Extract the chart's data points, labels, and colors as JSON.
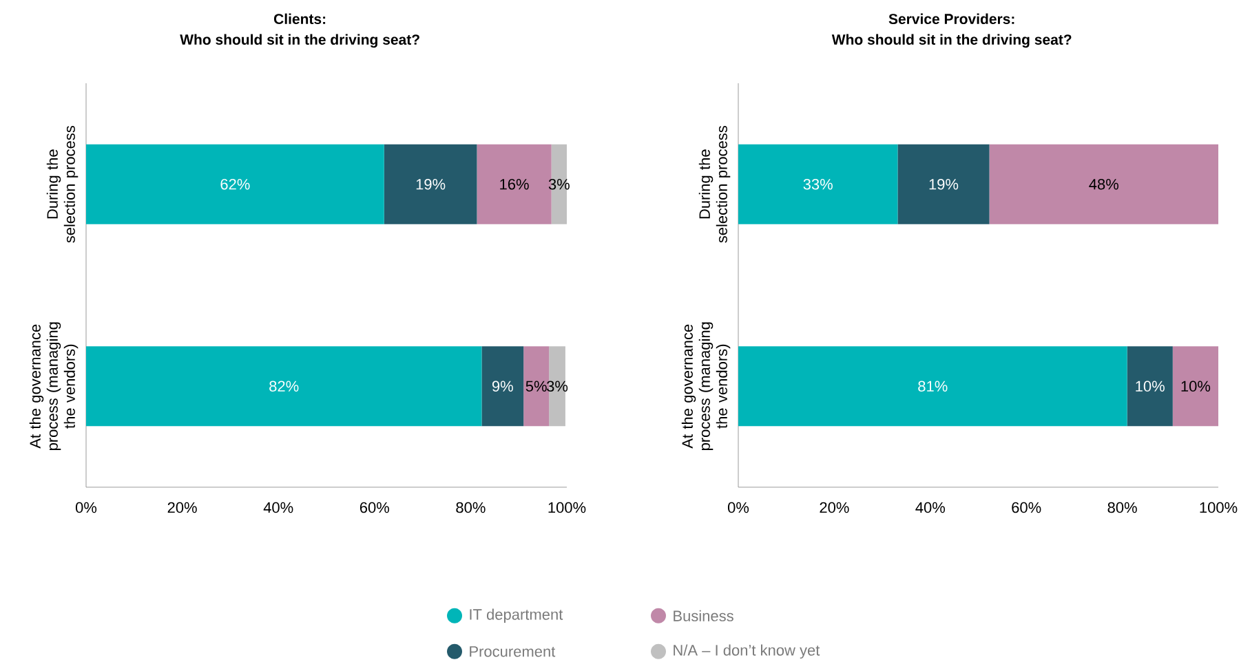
{
  "chart_data": [
    {
      "type": "bar",
      "orientation": "horizontal",
      "stacked": true,
      "title": "Clients:",
      "subtitle": "Who should sit in the driving seat?",
      "categories": [
        "During the selection process",
        "At the governance process (managing the vendors)"
      ],
      "xlim": [
        0,
        100
      ],
      "xticks": [
        {
          "value": 0,
          "label": "0%"
        },
        {
          "value": 20,
          "label": "20%"
        },
        {
          "value": 40,
          "label": "40%"
        },
        {
          "value": 60,
          "label": "60%"
        },
        {
          "value": 80,
          "label": "80%"
        },
        {
          "value": 100,
          "label": "100%"
        }
      ],
      "legend": "bottom",
      "marker": "circle",
      "series": [
        {
          "name": "IT department",
          "color": "#00b5b8",
          "values": [
            62,
            82.3
          ],
          "value_labels": [
            "62%",
            "82%"
          ]
        },
        {
          "name": "Procurement",
          "color": "#245a6b",
          "values": [
            19.3,
            8.7
          ],
          "value_labels": [
            "19%",
            "9%"
          ]
        },
        {
          "name": "Business",
          "color": "#c088a8",
          "values": [
            15.5,
            5.3
          ],
          "value_labels": [
            "16%",
            "5%"
          ]
        },
        {
          "name": "N/A – I don’t know yet",
          "color": "#c0c0c0",
          "values": [
            3.2,
            3.4
          ],
          "value_labels": [
            "3%",
            "3%"
          ]
        }
      ]
    },
    {
      "type": "bar",
      "orientation": "horizontal",
      "stacked": true,
      "title": "Service Providers:",
      "subtitle": "Who should sit in the driving seat?",
      "categories": [
        "During the selection process",
        "At the governance process (managing the vendors)"
      ],
      "xlim": [
        0,
        100
      ],
      "xticks": [
        {
          "value": 0,
          "label": "0%"
        },
        {
          "value": 20,
          "label": "20%"
        },
        {
          "value": 40,
          "label": "40%"
        },
        {
          "value": 60,
          "label": "60%"
        },
        {
          "value": 80,
          "label": "80%"
        },
        {
          "value": 100,
          "label": "100%"
        }
      ],
      "series": [
        {
          "color": "#00b5b8",
          "values": [
            33.2,
            81
          ],
          "value_labels": [
            "33%",
            "81%"
          ]
        },
        {
          "color": "#245a6b",
          "values": [
            19.1,
            9.5
          ],
          "value_labels": [
            "19%",
            "10%"
          ]
        },
        {
          "color": "#c088a8",
          "values": [
            47.7,
            9.5
          ],
          "value_labels": [
            "48%",
            "10%"
          ]
        }
      ]
    }
  ]
}
